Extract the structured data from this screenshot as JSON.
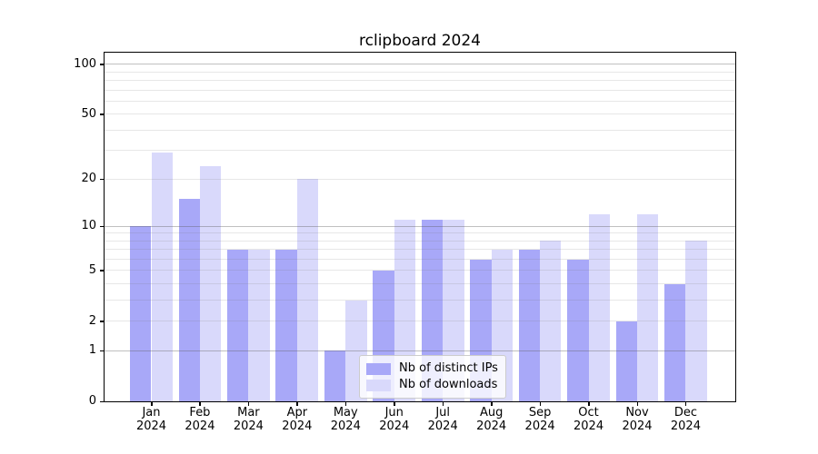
{
  "chart_data": {
    "type": "bar",
    "title": "rclipboard 2024",
    "scale": "log1p",
    "grid": true,
    "legend_position": "lower center",
    "categories": [
      "Jan 2024",
      "Feb 2024",
      "Mar 2024",
      "Apr 2024",
      "May 2024",
      "Jun 2024",
      "Jul 2024",
      "Aug 2024",
      "Sep 2024",
      "Oct 2024",
      "Nov 2024",
      "Dec 2024"
    ],
    "series": [
      {
        "name": "Nb of distinct IPs",
        "color": "#a8a8f8",
        "values": [
          10,
          15,
          7,
          7,
          1,
          5,
          11,
          6,
          7,
          6,
          2,
          4
        ]
      },
      {
        "name": "Nb of downloads",
        "color": "#d9d9fb",
        "values": [
          29,
          24,
          7,
          20,
          3,
          11,
          11,
          7,
          8,
          12,
          12,
          8
        ]
      }
    ],
    "xlabel": "",
    "ylabel": "",
    "ylim": [
      0,
      117.5
    ],
    "y_tick_values": [
      100,
      50,
      20,
      10,
      5,
      2,
      1,
      0
    ],
    "y_tick_labels": [
      "100",
      "50",
      "20",
      "10",
      "5",
      "2",
      "1",
      "0"
    ],
    "major_grid_values": [
      1,
      10,
      100
    ],
    "minor_grid_values": [
      2,
      3,
      4,
      5,
      6,
      7,
      8,
      9,
      20,
      30,
      40,
      50,
      60,
      70,
      80,
      90
    ]
  }
}
